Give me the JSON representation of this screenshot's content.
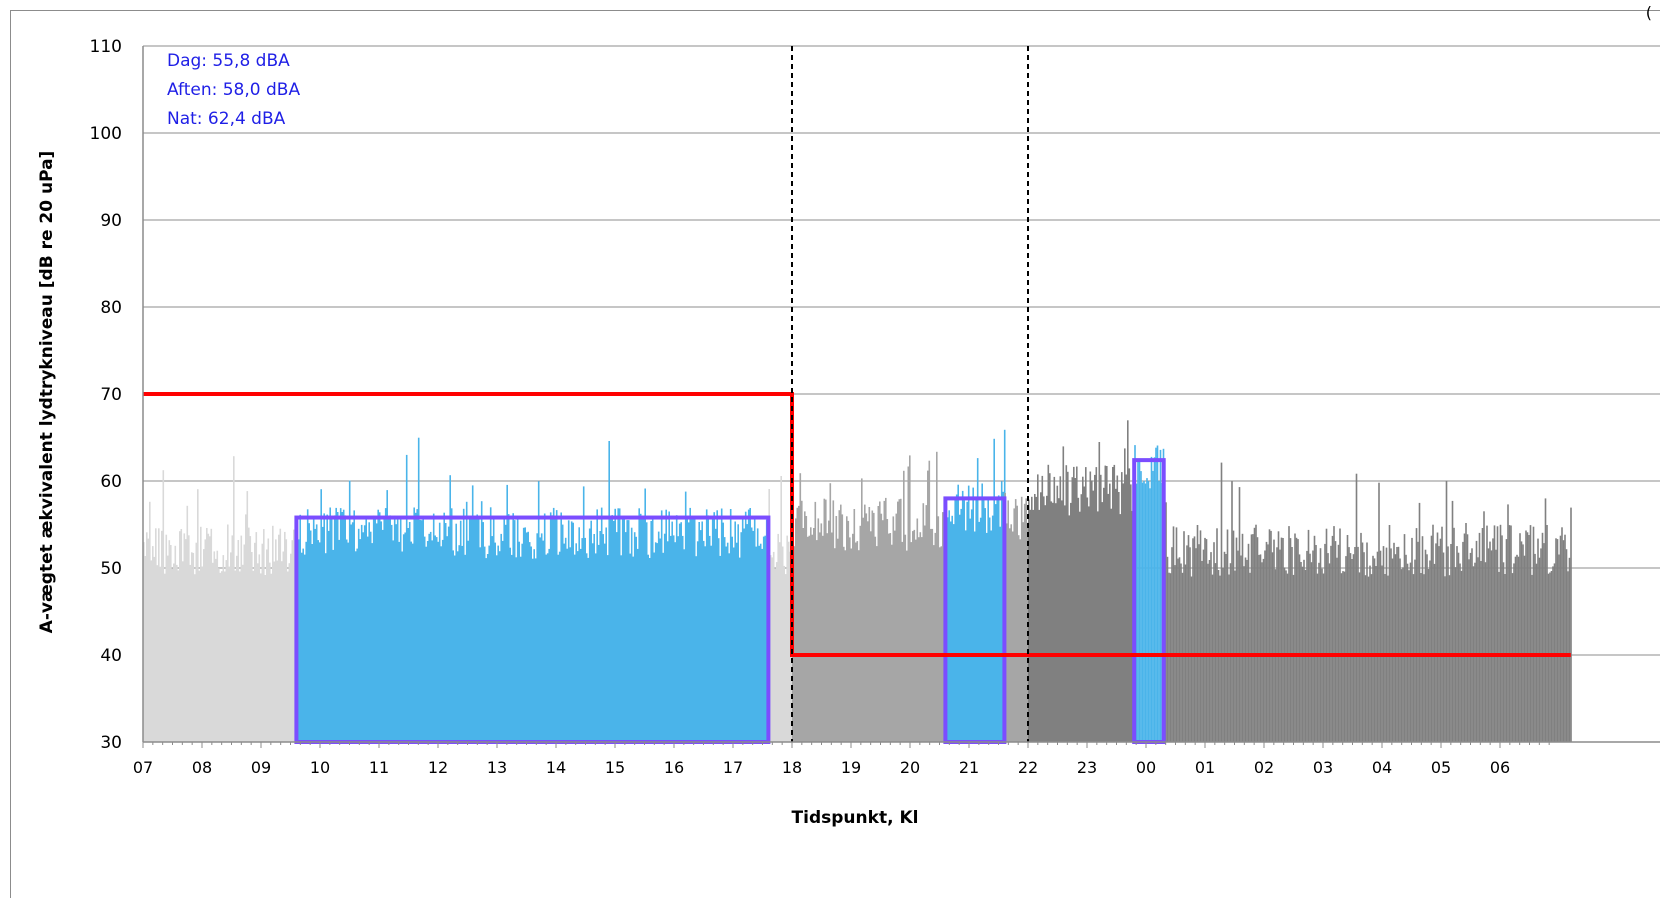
{
  "corner_mark": "(",
  "chart_data": {
    "type": "bar",
    "xlabel": "Tidspunkt, Kl",
    "ylabel": "A-vægtet ækvivalent lydtrykniveau [dB re 20 uPa]",
    "ylim": [
      30,
      110
    ],
    "yticks": [
      30,
      40,
      50,
      60,
      70,
      80,
      90,
      100,
      110
    ],
    "xlim": [
      7,
      31.2
    ],
    "xtick_labels": [
      "07",
      "08",
      "09",
      "10",
      "11",
      "12",
      "13",
      "14",
      "15",
      "16",
      "17",
      "18",
      "19",
      "20",
      "21",
      "22",
      "23",
      "00",
      "01",
      "02",
      "03",
      "04",
      "05",
      "06"
    ],
    "grid": "horizontal",
    "annotations": [
      "Dag: 55,8 dBA",
      "Aften: 58,0 dBA",
      "Nat: 62,4 dBA"
    ],
    "colors": {
      "day_unmeasured": "#d9d9d9",
      "measured": "#4ab4ea",
      "evening": "#a6a6a6",
      "night": "#808080",
      "limit": "#ff0000",
      "average_box": "#7b4dff",
      "annotation": "#1f1fe6",
      "grid": "#8c8c8c"
    },
    "series": [
      {
        "segments": [
          {
            "start": 7.0,
            "end": 9.6,
            "base": 52,
            "color": "day_unmeasured"
          },
          {
            "start": 9.6,
            "end": 17.6,
            "base": 54,
            "color": "measured"
          },
          {
            "start": 17.6,
            "end": 18.0,
            "base": 51,
            "color": "day_unmeasured"
          },
          {
            "start": 18.0,
            "end": 20.6,
            "base": 55,
            "color": "evening"
          },
          {
            "start": 20.6,
            "end": 21.6,
            "base": 57,
            "color": "measured"
          },
          {
            "start": 21.6,
            "end": 22.0,
            "base": 56,
            "color": "evening"
          },
          {
            "start": 22.0,
            "end": 23.8,
            "base": 59,
            "color": "night"
          },
          {
            "start": 23.8,
            "end": 24.3,
            "base": 62,
            "color": "measured"
          },
          {
            "start": 24.3,
            "end": 31.2,
            "base": 52,
            "color": "night"
          }
        ]
      }
    ],
    "limit_line": [
      {
        "from": 7,
        "to": 18,
        "value": 70
      },
      {
        "from": 18,
        "to": 31.2,
        "value": 40
      }
    ],
    "average_boxes": [
      {
        "label": "Dag",
        "from": 9.6,
        "to": 17.6,
        "value": 55.8
      },
      {
        "label": "Aften",
        "from": 20.6,
        "to": 21.6,
        "value": 58.0
      },
      {
        "label": "Nat",
        "from": 23.8,
        "to": 24.3,
        "value": 62.4
      }
    ],
    "dashed_markers": [
      18,
      22
    ]
  }
}
